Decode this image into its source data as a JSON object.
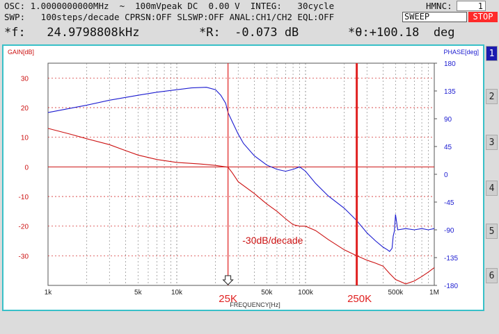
{
  "status": {
    "osc_line": "OSC: 1.0000000000MHz  ~  100mVpeak DC  0.00 V  INTEG:   30cycle",
    "swp_line": "SWP:   100steps/decade CPRSN:OFF SLSWP:OFF ANAL:CH1/CH2 EQL:OFF",
    "hmnc_label": "HMNC:",
    "hmnc_value": "1",
    "sweep_button": "SWEEP",
    "stop_button": "STOP"
  },
  "readouts": {
    "freq": "*f:   24.9798808kHz",
    "ratio": "*R:  -0.073 dB",
    "theta": "*θ:+100.18  deg"
  },
  "tabs": [
    "1",
    "2",
    "3",
    "4",
    "5",
    "6"
  ],
  "colors": {
    "gain": "#cc1111",
    "phase": "#1a1ad0",
    "border": "#37c0c8",
    "stop": "#ff2a2a",
    "marker": "#e02020"
  },
  "chart_data": {
    "type": "line",
    "xscale": "log",
    "xlim": [
      1000,
      1000000
    ],
    "xlabel": "FREQUENCY[Hz]",
    "x_tick_labels": [
      {
        "x": 1000,
        "label": "1k"
      },
      {
        "x": 5000,
        "label": "5k"
      },
      {
        "x": 10000,
        "label": "10k"
      },
      {
        "x": 50000,
        "label": "50k"
      },
      {
        "x": 100000,
        "label": "100k"
      },
      {
        "x": 500000,
        "label": "500k"
      },
      {
        "x": 1000000,
        "label": "1M"
      }
    ],
    "y_left": {
      "label": "GAIN[dB]",
      "lim": [
        -40,
        35
      ],
      "ticks": [
        30,
        20,
        10,
        0,
        -10,
        -20,
        -30
      ]
    },
    "y_right": {
      "label": "PHASE[deg]",
      "lim": [
        -180,
        180
      ],
      "ticks": [
        180,
        135,
        90,
        45,
        0,
        -45,
        -90,
        -135,
        -180
      ]
    },
    "series": [
      {
        "axis": "left",
        "x": [
          1000,
          1500,
          2000,
          3000,
          4000,
          5000,
          7000,
          10000,
          15000,
          20000,
          24000,
          25000,
          27000,
          30000,
          40000,
          50000,
          60000,
          70000,
          80000,
          90000,
          100000,
          120000,
          150000,
          200000,
          250000,
          300000,
          350000,
          400000,
          450000,
          500000,
          600000,
          700000,
          800000,
          900000,
          1000000
        ],
        "y": [
          13,
          11,
          9.5,
          7.5,
          5.5,
          4,
          2.5,
          1.5,
          1,
          0.5,
          0,
          -0.1,
          -2,
          -5,
          -9,
          -12.5,
          -15,
          -17.5,
          -19.5,
          -20,
          -20,
          -21.5,
          -24.5,
          -28,
          -30,
          -31.5,
          -32.5,
          -33.5,
          -36,
          -38,
          -39.5,
          -38.5,
          -37,
          -35.5,
          -34
        ]
      },
      {
        "axis": "right",
        "x": [
          1000,
          2000,
          3000,
          5000,
          7000,
          10000,
          13000,
          17000,
          20000,
          22000,
          24000,
          25000,
          27000,
          30000,
          33000,
          40000,
          50000,
          60000,
          70000,
          80000,
          90000,
          100000,
          120000,
          150000,
          200000,
          250000,
          300000,
          350000,
          400000,
          430000,
          450000,
          470000,
          480000,
          490000,
          500000,
          520000,
          600000,
          700000,
          800000,
          900000,
          1000000
        ],
        "y": [
          100,
          112,
          120,
          128,
          133,
          137,
          140,
          141,
          137,
          128,
          115,
          100,
          85,
          65,
          50,
          30,
          15,
          8,
          5,
          8,
          12,
          5,
          -15,
          -35,
          -55,
          -75,
          -95,
          -108,
          -118,
          -122,
          -125,
          -120,
          -100,
          -92,
          -65,
          -90,
          -88,
          -90,
          -88,
          -90,
          -88
        ]
      }
    ],
    "markers": [
      {
        "x": 25000,
        "label": "25K"
      },
      {
        "x": 250000,
        "label": "250K"
      }
    ],
    "annotations": [
      {
        "text": "-30dB/decade",
        "x": 30000,
        "y": -25
      }
    ]
  }
}
